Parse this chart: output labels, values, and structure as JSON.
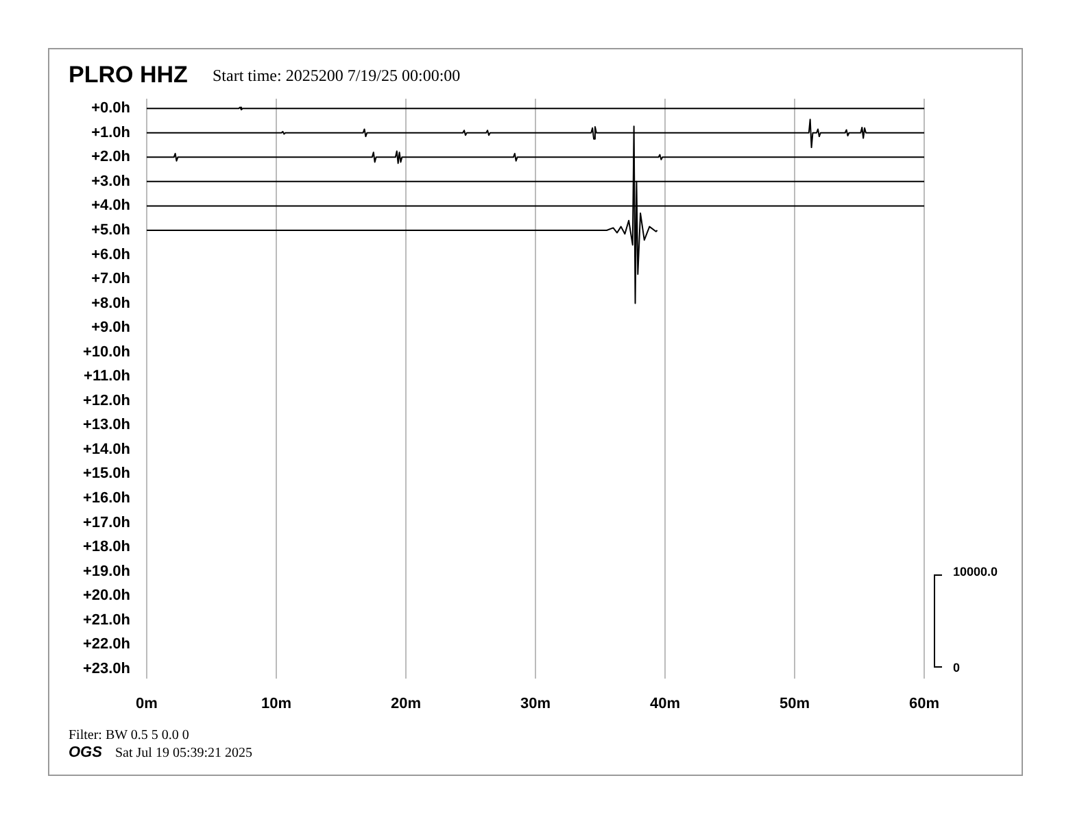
{
  "chart_data": {
    "type": "line",
    "title": "PLRO HHZ",
    "subtitle": "Start time: 2025200  7/19/25 00:00:00",
    "annotations": [
      "10000.0",
      "0",
      "Filter: BW 0.5 5 0.0 0",
      "OGS",
      "Sat Jul 19 05:39:21 2025"
    ],
    "xlim": [
      0,
      60
    ],
    "xticks": [
      {
        "value": 0,
        "label": "0m"
      },
      {
        "value": 10,
        "label": "10m"
      },
      {
        "value": 20,
        "label": "20m"
      },
      {
        "value": 30,
        "label": "30m"
      },
      {
        "value": 40,
        "label": "40m"
      },
      {
        "value": 50,
        "label": "50m"
      },
      {
        "value": 60,
        "label": "60m"
      }
    ],
    "ylim": [
      23.4,
      -0.4
    ],
    "yticks": [
      {
        "value": 0,
        "label": "+0.0h"
      },
      {
        "value": 1,
        "label": "+1.0h"
      },
      {
        "value": 2,
        "label": "+2.0h"
      },
      {
        "value": 3,
        "label": "+3.0h"
      },
      {
        "value": 4,
        "label": "+4.0h"
      },
      {
        "value": 5,
        "label": "+5.0h"
      },
      {
        "value": 6,
        "label": "+6.0h"
      },
      {
        "value": 7,
        "label": "+7.0h"
      },
      {
        "value": 8,
        "label": "+8.0h"
      },
      {
        "value": 9,
        "label": "+9.0h"
      },
      {
        "value": 10,
        "label": "+10.0h"
      },
      {
        "value": 11,
        "label": "+11.0h"
      },
      {
        "value": 12,
        "label": "+12.0h"
      },
      {
        "value": 13,
        "label": "+13.0h"
      },
      {
        "value": 14,
        "label": "+14.0h"
      },
      {
        "value": 15,
        "label": "+15.0h"
      },
      {
        "value": 16,
        "label": "+16.0h"
      },
      {
        "value": 17,
        "label": "+17.0h"
      },
      {
        "value": 18,
        "label": "+18.0h"
      },
      {
        "value": 19,
        "label": "+19.0h"
      },
      {
        "value": 20,
        "label": "+20.0h"
      },
      {
        "value": 21,
        "label": "+21.0h"
      },
      {
        "value": 22,
        "label": "+22.0h"
      },
      {
        "value": 23,
        "label": "+23.0h"
      }
    ],
    "grid": "x",
    "legend": false,
    "marker": "none",
    "line_style": "solid",
    "series": [
      {
        "color": "#000000",
        "x": [
          0,
          7.1,
          7.2,
          7.3,
          7.4,
          60
        ],
        "values": [
          0,
          0,
          -0.05,
          0.05,
          0,
          0
        ]
      },
      {
        "color": "#000000",
        "x": [
          0,
          10.4,
          10.5,
          10.6,
          10.7,
          16.7,
          16.8,
          16.9,
          17.0,
          24.4,
          24.5,
          24.6,
          24.7,
          26.2,
          26.3,
          26.4,
          26.5,
          34.3,
          34.4,
          34.5,
          34.6,
          34.7,
          51.1,
          51.2,
          51.3,
          51.4,
          51.7,
          51.8,
          51.9,
          52.0,
          53.9,
          54.0,
          54.1,
          54.2,
          55.1,
          55.2,
          55.3,
          55.4,
          55.5,
          60
        ],
        "values": [
          1,
          1,
          0.95,
          1.05,
          1,
          1,
          0.85,
          1.15,
          1,
          1,
          0.9,
          1.1,
          1,
          1,
          0.9,
          1.1,
          1,
          1,
          0.8,
          1.25,
          0.75,
          1,
          1,
          0.45,
          1.6,
          1,
          1,
          0.85,
          1.15,
          1,
          1,
          0.88,
          1.12,
          1,
          1,
          0.78,
          1.22,
          0.8,
          1,
          1
        ]
      },
      {
        "color": "#000000",
        "x": [
          0,
          2.1,
          2.2,
          2.3,
          2.4,
          17.4,
          17.5,
          17.6,
          17.7,
          19.2,
          19.3,
          19.4,
          19.5,
          19.6,
          19.7,
          28.3,
          28.4,
          28.5,
          28.6,
          39.5,
          39.6,
          39.7,
          39.8,
          60
        ],
        "values": [
          2,
          2,
          1.85,
          2.15,
          2,
          2,
          1.8,
          2.2,
          2,
          2,
          1.75,
          2.25,
          1.8,
          2.2,
          2,
          2,
          1.85,
          2.15,
          2,
          2,
          1.9,
          2.1,
          2,
          2
        ]
      },
      {
        "color": "#000000",
        "x": [
          0,
          60
        ],
        "values": [
          3,
          3
        ]
      },
      {
        "color": "#000000",
        "x": [
          0,
          60
        ],
        "values": [
          4,
          4
        ]
      },
      {
        "color": "#000000",
        "x": [
          0,
          35.5,
          36,
          36.3,
          36.6,
          36.9,
          37.2,
          37.5,
          37.6,
          37.7,
          37.8,
          37.9,
          38.1,
          38.4,
          38.8,
          39.3,
          39.4
        ],
        "values": [
          5,
          5,
          4.9,
          5.1,
          4.85,
          5.15,
          4.6,
          5.6,
          0.73,
          8,
          3,
          6.8,
          4.3,
          5.4,
          4.85,
          5.05,
          5
        ]
      }
    ]
  }
}
